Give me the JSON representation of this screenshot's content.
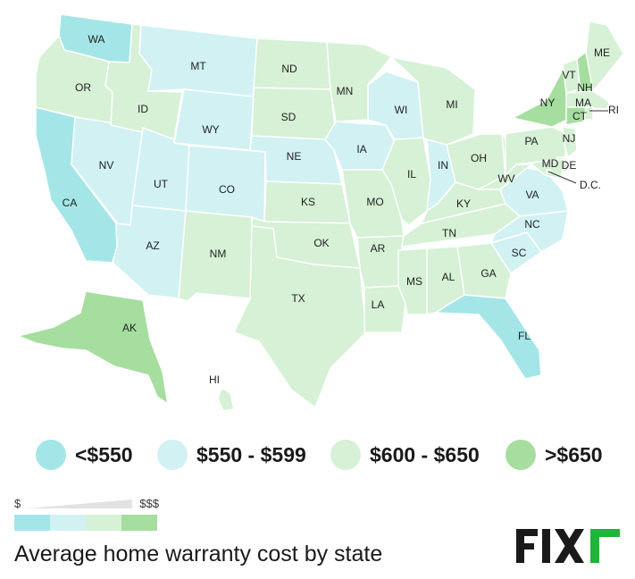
{
  "colors": {
    "tier1": "#a4e6e8",
    "tier2": "#d1f1f3",
    "tier3": "#d6f1d6",
    "tier4": "#a5de9f",
    "border": "#ffffff",
    "logo_dark": "#1a1a1a",
    "logo_green": "#1fb53a"
  },
  "map": {
    "states": [
      {
        "code": "WA",
        "label": "WA",
        "tier": "tier1"
      },
      {
        "code": "OR",
        "label": "OR",
        "tier": "tier3"
      },
      {
        "code": "CA",
        "label": "CA",
        "tier": "tier1"
      },
      {
        "code": "NV",
        "label": "NV",
        "tier": "tier2"
      },
      {
        "code": "ID",
        "label": "ID",
        "tier": "tier3"
      },
      {
        "code": "MT",
        "label": "MT",
        "tier": "tier2"
      },
      {
        "code": "WY",
        "label": "WY",
        "tier": "tier2"
      },
      {
        "code": "UT",
        "label": "UT",
        "tier": "tier2"
      },
      {
        "code": "AZ",
        "label": "AZ",
        "tier": "tier2"
      },
      {
        "code": "CO",
        "label": "CO",
        "tier": "tier2"
      },
      {
        "code": "NM",
        "label": "NM",
        "tier": "tier3"
      },
      {
        "code": "ND",
        "label": "ND",
        "tier": "tier3"
      },
      {
        "code": "SD",
        "label": "SD",
        "tier": "tier3"
      },
      {
        "code": "NE",
        "label": "NE",
        "tier": "tier2"
      },
      {
        "code": "KS",
        "label": "KS",
        "tier": "tier3"
      },
      {
        "code": "OK",
        "label": "OK",
        "tier": "tier3"
      },
      {
        "code": "TX",
        "label": "TX",
        "tier": "tier3"
      },
      {
        "code": "MN",
        "label": "MN",
        "tier": "tier3"
      },
      {
        "code": "IA",
        "label": "IA",
        "tier": "tier2"
      },
      {
        "code": "MO",
        "label": "MO",
        "tier": "tier3"
      },
      {
        "code": "AR",
        "label": "AR",
        "tier": "tier3"
      },
      {
        "code": "LA",
        "label": "LA",
        "tier": "tier3"
      },
      {
        "code": "WI",
        "label": "WI",
        "tier": "tier2"
      },
      {
        "code": "IL",
        "label": "IL",
        "tier": "tier3"
      },
      {
        "code": "MI",
        "label": "MI",
        "tier": "tier3"
      },
      {
        "code": "IN",
        "label": "IN",
        "tier": "tier2"
      },
      {
        "code": "OH",
        "label": "OH",
        "tier": "tier3"
      },
      {
        "code": "KY",
        "label": "KY",
        "tier": "tier3"
      },
      {
        "code": "TN",
        "label": "TN",
        "tier": "tier3"
      },
      {
        "code": "MS",
        "label": "MS",
        "tier": "tier3"
      },
      {
        "code": "AL",
        "label": "AL",
        "tier": "tier3"
      },
      {
        "code": "GA",
        "label": "GA",
        "tier": "tier3"
      },
      {
        "code": "FL",
        "label": "FL",
        "tier": "tier1"
      },
      {
        "code": "SC",
        "label": "SC",
        "tier": "tier2"
      },
      {
        "code": "NC",
        "label": "NC",
        "tier": "tier2"
      },
      {
        "code": "VA",
        "label": "VA",
        "tier": "tier2"
      },
      {
        "code": "WV",
        "label": "WV",
        "tier": "tier3"
      },
      {
        "code": "PA",
        "label": "PA",
        "tier": "tier3"
      },
      {
        "code": "NY",
        "label": "NY",
        "tier": "tier4"
      },
      {
        "code": "VT",
        "label": "VT",
        "tier": "tier3"
      },
      {
        "code": "NH",
        "label": "NH",
        "tier": "tier4"
      },
      {
        "code": "ME",
        "label": "ME",
        "tier": "tier3"
      },
      {
        "code": "MA",
        "label": "MA",
        "tier": "tier3"
      },
      {
        "code": "CT",
        "label": "CT",
        "tier": "tier4"
      },
      {
        "code": "RI",
        "label": "RI",
        "tier": "tier3"
      },
      {
        "code": "NJ",
        "label": "NJ",
        "tier": "tier3"
      },
      {
        "code": "DE",
        "label": "DE",
        "tier": "tier3"
      },
      {
        "code": "MD",
        "label": "MD",
        "tier": "tier3"
      },
      {
        "code": "DC",
        "label": "D.C.",
        "tier": "tier3"
      },
      {
        "code": "AK",
        "label": "AK",
        "tier": "tier4"
      },
      {
        "code": "HI",
        "label": "HI",
        "tier": "tier3"
      }
    ]
  },
  "legend": {
    "items": [
      {
        "label": "<$550",
        "tier": "tier1"
      },
      {
        "label": "$550 - $599",
        "tier": "tier2"
      },
      {
        "label": "$600 - $650",
        "tier": "tier3"
      },
      {
        "label": ">$650",
        "tier": "tier4"
      }
    ]
  },
  "scale": {
    "low": "$",
    "high": "$$$"
  },
  "caption": "Average home warranty cost by state",
  "logo": {
    "text": "FIXR"
  }
}
